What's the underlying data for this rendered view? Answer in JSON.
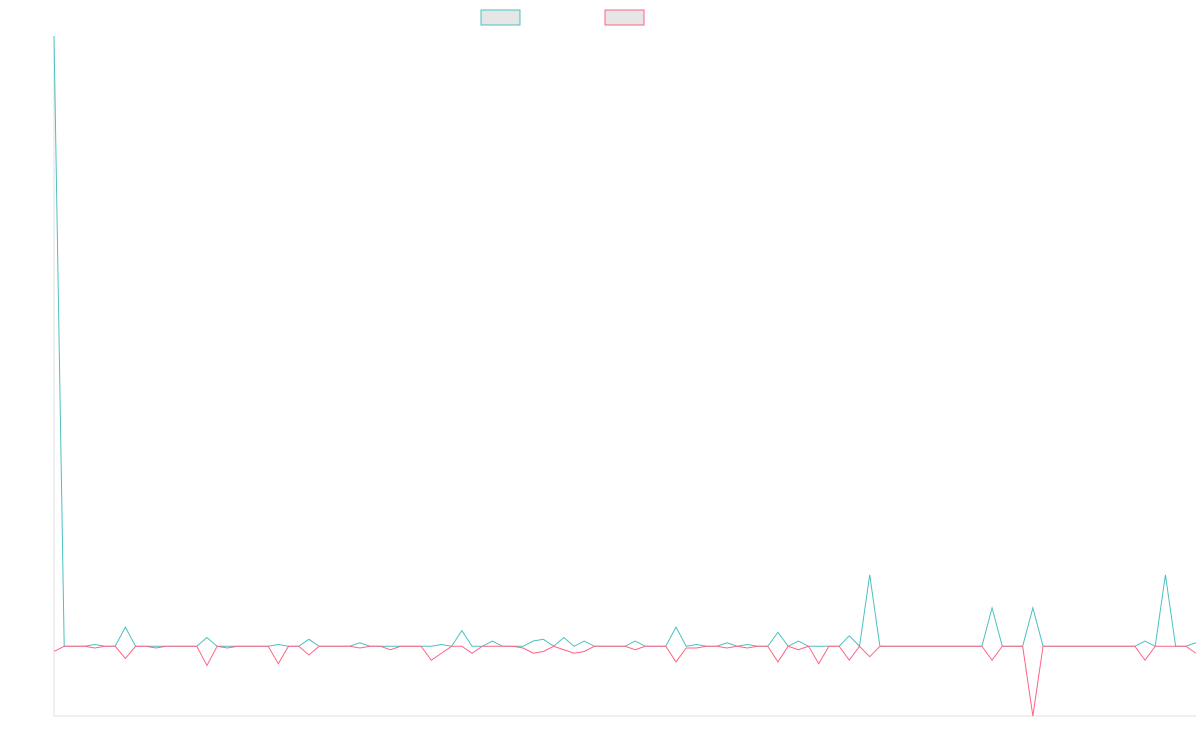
{
  "chart_data": {
    "type": "line",
    "title": "",
    "xlabel": "",
    "ylabel": "",
    "grid": false,
    "legend_position": "top-center",
    "x_range": [
      0,
      112
    ],
    "ylim": [
      -2,
      17.5
    ],
    "series": [
      {
        "name": "",
        "color": "#4bc0c0",
        "values": [
          17.5,
          0,
          0,
          0,
          0.05,
          0,
          0,
          0.55,
          0,
          0,
          0,
          0,
          0,
          0,
          0,
          0.25,
          0,
          0,
          0,
          0,
          0,
          0,
          0.05,
          0,
          0,
          0.2,
          0,
          0,
          0,
          0,
          0.1,
          0,
          0,
          0,
          0,
          0,
          0,
          0,
          0.05,
          0,
          0.45,
          0,
          0,
          0.15,
          0,
          0,
          0,
          0.15,
          0.2,
          0,
          0.25,
          0,
          0.15,
          0,
          0,
          0,
          0,
          0.15,
          0,
          0,
          0,
          0.55,
          0,
          0.05,
          0,
          0,
          0.1,
          0,
          0.05,
          0,
          0,
          0.4,
          0,
          0.15,
          0,
          0,
          0,
          0,
          0.3,
          0,
          2.05,
          0,
          0,
          0,
          0,
          0,
          0,
          0,
          0,
          0,
          0,
          0,
          1.1,
          0,
          0,
          0,
          1.1,
          0,
          0,
          0,
          0,
          0,
          0,
          0,
          0,
          0,
          0,
          0.15,
          0,
          2.05,
          0,
          0,
          0.1
        ]
      },
      {
        "name": "",
        "color": "#ff6384",
        "values": [
          -0.15,
          0,
          0,
          0,
          -0.05,
          0,
          0,
          -0.35,
          0,
          0,
          -0.05,
          0,
          0,
          0,
          0,
          -0.55,
          0,
          -0.05,
          0,
          0,
          0,
          0,
          -0.5,
          0,
          0,
          -0.25,
          0,
          0,
          0,
          0,
          -0.05,
          0,
          0,
          -0.1,
          0,
          0,
          0,
          -0.4,
          -0.2,
          0,
          0,
          -0.2,
          0,
          0,
          0,
          0,
          -0.05,
          -0.2,
          -0.15,
          0,
          -0.1,
          -0.2,
          -0.15,
          0,
          0,
          0,
          0,
          -0.1,
          0,
          0,
          0,
          -0.45,
          -0.05,
          -0.05,
          0,
          0,
          -0.05,
          0,
          -0.05,
          0,
          0,
          -0.45,
          0,
          -0.1,
          0,
          -0.5,
          0,
          0,
          -0.4,
          0,
          -0.3,
          0,
          0,
          0,
          0,
          0,
          0,
          0,
          0,
          0,
          0,
          0,
          -0.4,
          0,
          0,
          0,
          -2.0,
          0,
          0,
          0,
          0,
          0,
          0,
          0,
          0,
          0,
          0,
          -0.4,
          0,
          0,
          0,
          0,
          -0.2
        ]
      }
    ]
  }
}
